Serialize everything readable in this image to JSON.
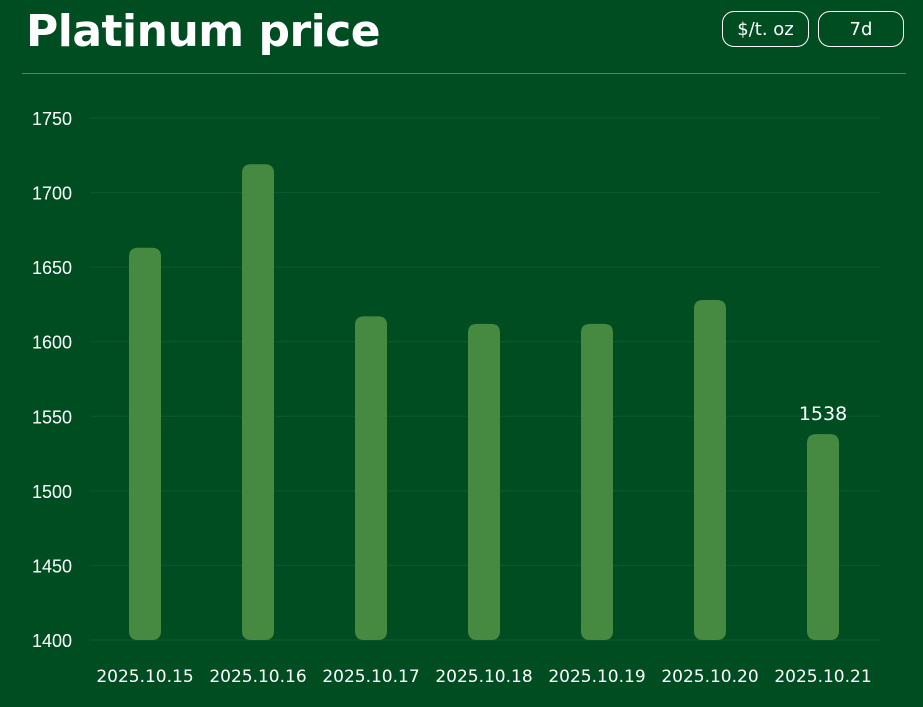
{
  "header": {
    "title": "Platinum price",
    "unit_label": "$/t. oz",
    "range_label": "7d"
  },
  "colors": {
    "background": "#004d22",
    "bar": "#468a41",
    "text": "#ffffff",
    "grid": "#0d5a2c"
  },
  "chart_data": {
    "type": "bar",
    "title": "Platinum price",
    "xlabel": "",
    "ylabel": "",
    "categories": [
      "2025.10.15",
      "2025.10.16",
      "2025.10.17",
      "2025.10.18",
      "2025.10.19",
      "2025.10.20",
      "2025.10.21"
    ],
    "values": [
      1663,
      1719,
      1617,
      1612,
      1612,
      1628,
      1538
    ],
    "ylim": [
      1400,
      1750
    ],
    "yticks": [
      1400,
      1450,
      1500,
      1550,
      1600,
      1650,
      1700,
      1750
    ],
    "grid": true,
    "data_labels": [
      {
        "index": 6,
        "text": "1538"
      }
    ]
  }
}
